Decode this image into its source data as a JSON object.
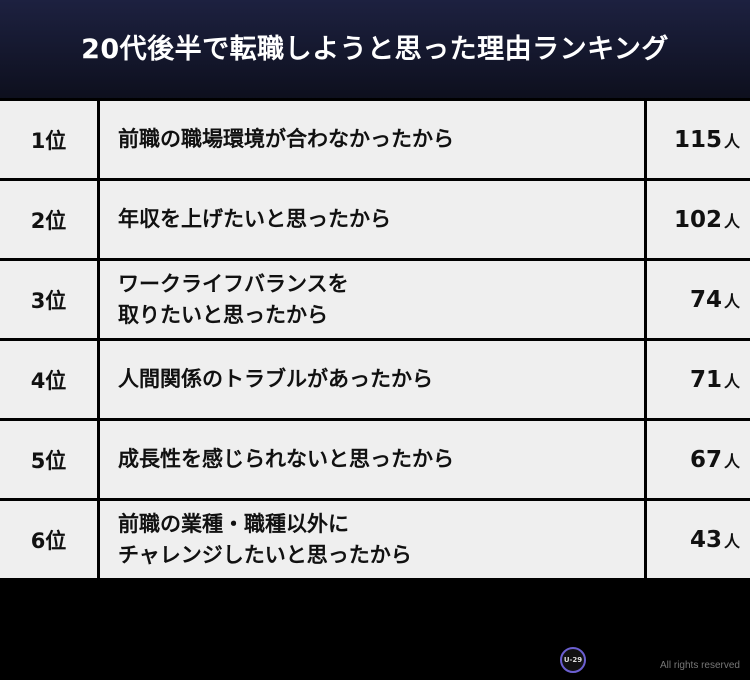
{
  "title": "20代後半で転職しようと思った理由ランキング",
  "chart_data": {
    "type": "table",
    "rows": [
      {
        "rank": "1位",
        "reason": "前職の職場環境が合わなかったから",
        "count": 115,
        "unit": "人"
      },
      {
        "rank": "2位",
        "reason": "年収を上げたいと思ったから",
        "count": 102,
        "unit": "人"
      },
      {
        "rank": "3位",
        "reason": "ワークライフバランスを\n取りたいと思ったから",
        "count": 74,
        "unit": "人"
      },
      {
        "rank": "4位",
        "reason": "人間関係のトラブルがあったから",
        "count": 71,
        "unit": "人"
      },
      {
        "rank": "5位",
        "reason": "成長性を感じられないと思ったから",
        "count": 67,
        "unit": "人"
      },
      {
        "rank": "6位",
        "reason": "前職の業種・職種以外に\nチャレンジしたいと思ったから",
        "count": 43,
        "unit": "人"
      }
    ]
  },
  "footer": {
    "logo_text": "U-29",
    "copyright": "All rights reserved"
  }
}
